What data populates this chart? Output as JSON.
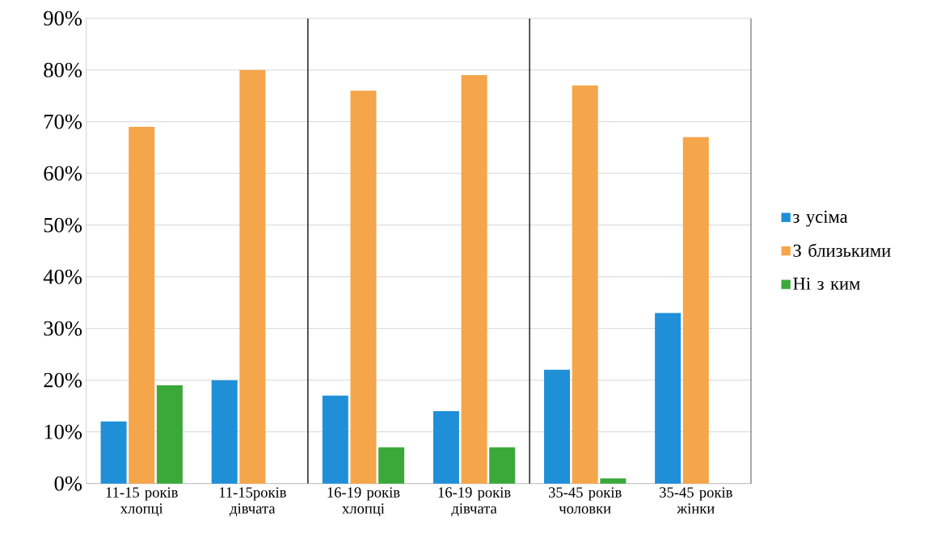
{
  "chart_data": {
    "type": "bar",
    "categories": [
      "11-15 років хлопці",
      "11-15років дівчата",
      "16-19 років хлопці",
      "16-19 років дівчата",
      "35-45 років чоловки",
      "35-45 років жінки"
    ],
    "series": [
      {
        "name": "з усіма",
        "color": "#1f8fd8",
        "values": [
          12,
          20,
          17,
          14,
          22,
          33
        ]
      },
      {
        "name": "З близькими",
        "color": "#f5a54a",
        "values": [
          69,
          80,
          76,
          79,
          77,
          67
        ]
      },
      {
        "name": "Ні з ким",
        "color": "#3aa93a",
        "values": [
          19,
          0,
          7,
          7,
          1,
          0
        ]
      }
    ],
    "ylim": [
      0,
      90
    ],
    "yticks": [
      {
        "value": 0,
        "label": "0%"
      },
      {
        "value": 10,
        "label": "10%"
      },
      {
        "value": 20,
        "label": "20%"
      },
      {
        "value": 30,
        "label": "30%"
      },
      {
        "value": 40,
        "label": "40%"
      },
      {
        "value": 50,
        "label": "50%"
      },
      {
        "value": 60,
        "label": "60%"
      },
      {
        "value": 70,
        "label": "70%"
      },
      {
        "value": 80,
        "label": "80%"
      },
      {
        "value": 90,
        "label": "90%"
      }
    ],
    "grid": "y",
    "legend": "right"
  }
}
